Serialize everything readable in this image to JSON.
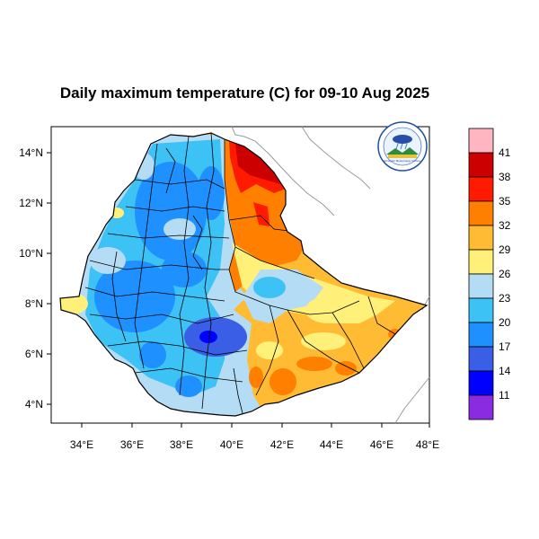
{
  "title": "Daily maximum temperature (C) for 09-10 Aug 2025",
  "map": {
    "lon_range": [
      33,
      48
    ],
    "lat_range": [
      3,
      15
    ],
    "x_ticks": [
      "34°E",
      "36°E",
      "38°E",
      "40°E",
      "42°E",
      "44°E",
      "46°E",
      "48°E"
    ],
    "y_ticks": [
      "14°N",
      "12°N",
      "10°N",
      "8°N",
      "6°N",
      "4°N"
    ],
    "region": "Ethiopia"
  },
  "colorbar": {
    "labels": [
      "41",
      "38",
      "35",
      "32",
      "29",
      "26",
      "23",
      "20",
      "17",
      "14",
      "11"
    ],
    "colors": [
      "#ffb6c1",
      "#cc0000",
      "#ff1a00",
      "#ff8000",
      "#ffbb33",
      "#fff07a",
      "#b4dcf5",
      "#3cc2f5",
      "#1e90ff",
      "#3a5fe6",
      "#0000ff",
      "#8a2be2"
    ]
  },
  "logo": {
    "caption": "Ethiopian Meteorology Institute"
  }
}
